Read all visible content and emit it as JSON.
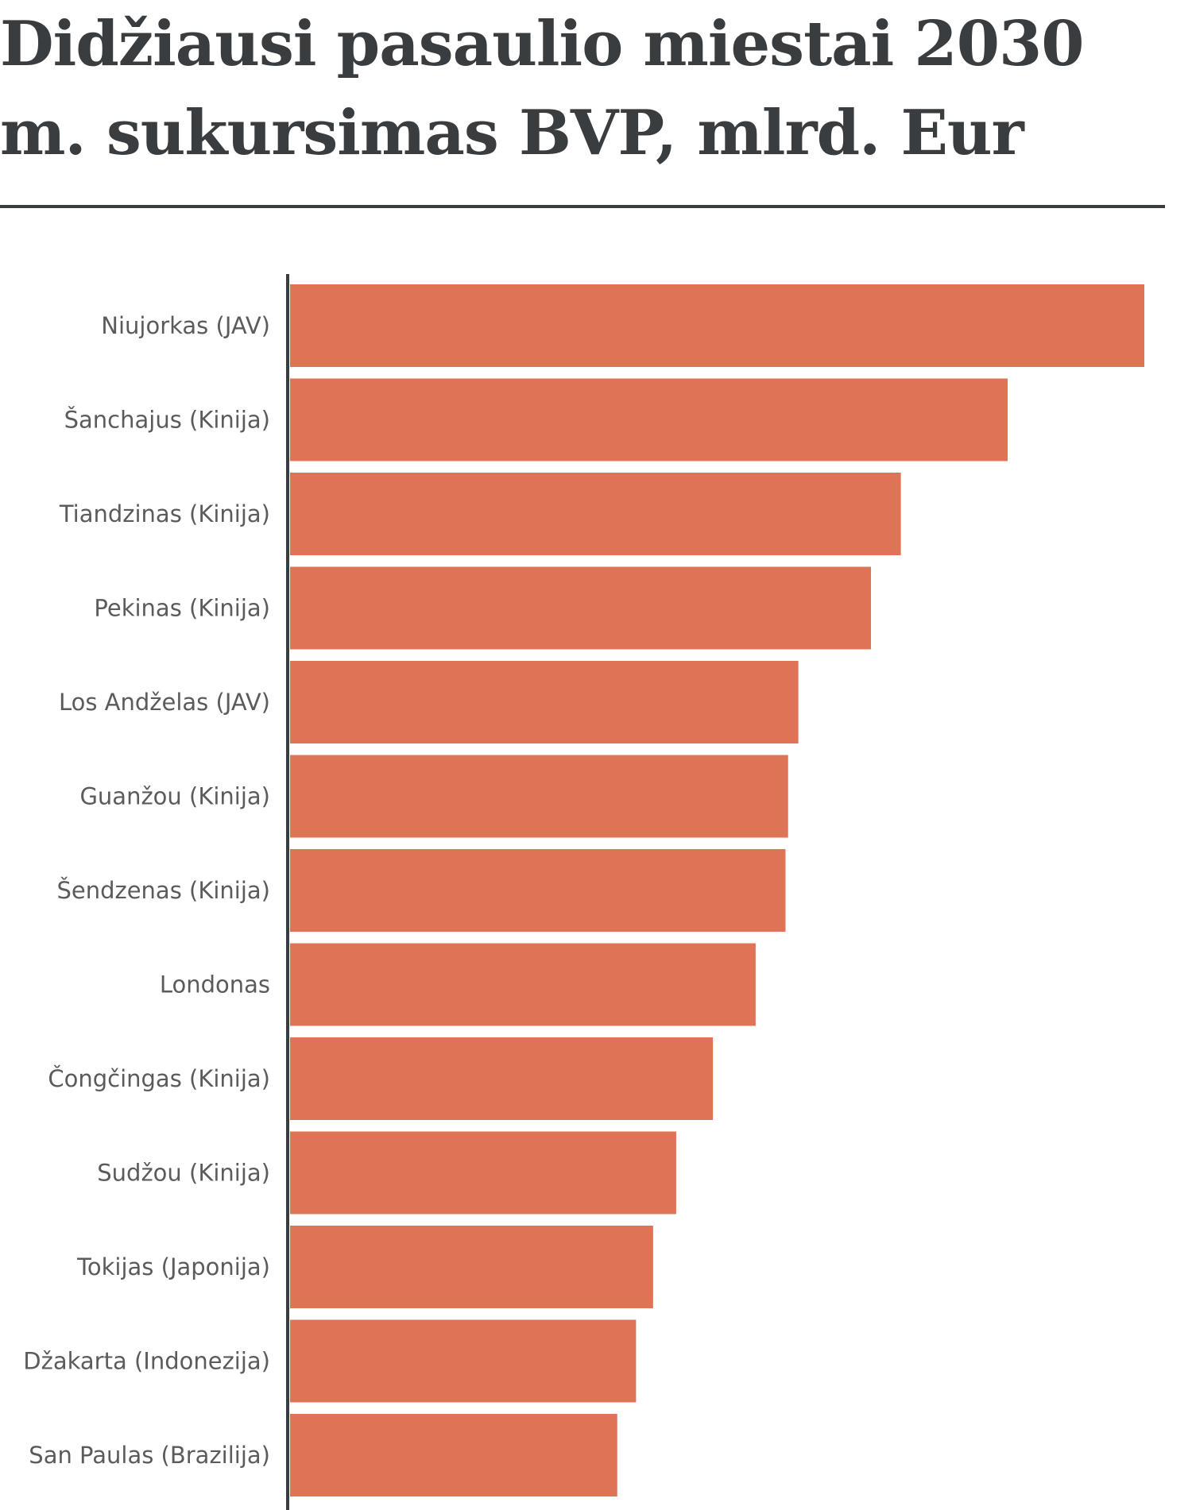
{
  "title": "Didžiausi pasaulio miestai 2030 m. sukursimas BVP, mlrd. Eur",
  "colors": {
    "bar": "#de7455",
    "axis": "#3a3d40",
    "label": "#5b5b5b",
    "title": "#3a3d40"
  },
  "chart_data": {
    "type": "bar",
    "orientation": "horizontal",
    "title": "Didžiausi pasaulio miestai 2030 m. sukursimas BVP, mlrd. Eur",
    "xlabel": "",
    "ylabel": "",
    "categories": [
      "Niujorkas (JAV)",
      "Šanchajus (Kinija)",
      "Tiandzinas (Kinija)",
      "Pekinas (Kinija)",
      "Los Andželas (JAV)",
      "Guanžou (Kinija)",
      "Šendzenas (Kinija)",
      "Londonas",
      "Čongčingas (Kinija)",
      "Sudžou (Kinija)",
      "Tokijas (Japonija)",
      "Džakarta (Indonezija)",
      "San Paulas (Brazilija)"
    ],
    "values": [
      100,
      84,
      71.5,
      68,
      59.5,
      58.3,
      58,
      54.5,
      49.5,
      45.2,
      42.5,
      40.5,
      38.3
    ],
    "xlim": [
      0,
      100
    ],
    "grid": false,
    "legend": "none"
  }
}
